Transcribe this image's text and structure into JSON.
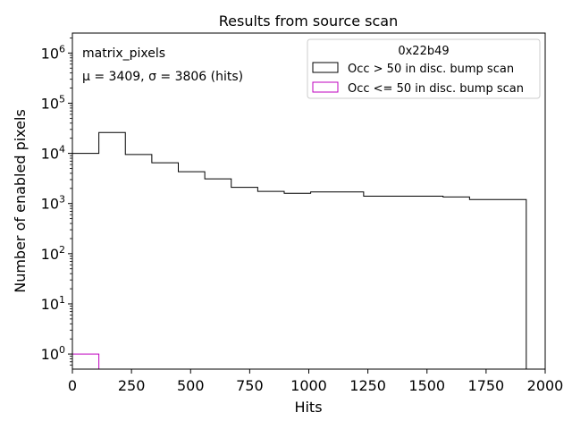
{
  "chart_data": {
    "type": "histogram",
    "title": "Results from source scan",
    "xlabel": "Hits",
    "ylabel": "Number of enabled pixels",
    "yscale": "log",
    "xlim": [
      0,
      2000
    ],
    "ylim": [
      0.5,
      2500000
    ],
    "xticks": [
      0,
      250,
      500,
      750,
      1000,
      1250,
      1500,
      1750,
      2000
    ],
    "xtick_labels": [
      "0",
      "250",
      "500",
      "750",
      "1000",
      "1250",
      "1500",
      "1750",
      "2000"
    ],
    "ytick_exponents": [
      0,
      1,
      2,
      3,
      4,
      5,
      6
    ],
    "ytick_base": "10",
    "annotations": {
      "name": "matrix_pixels",
      "stats": "μ = 3409, σ = 3806 (hits)"
    },
    "legend": {
      "title": "0x22b49",
      "position": "top-right"
    },
    "series": [
      {
        "name": "Occ > 50 in disc. bump scan",
        "color": "#000000",
        "bin_edges": [
          0,
          112,
          224,
          336,
          448,
          560,
          672,
          784,
          896,
          1008,
          1120,
          1232,
          1344,
          1456,
          1568,
          1680,
          1792,
          1920
        ],
        "values": [
          10000,
          26000,
          9500,
          6500,
          4300,
          3100,
          2100,
          1750,
          1600,
          1700,
          1700,
          1400,
          1400,
          1400,
          1350,
          1200,
          1200
        ]
      },
      {
        "name": "Occ <= 50 in disc. bump scan",
        "color": "#bf00bf",
        "bin_edges": [
          0,
          112
        ],
        "values": [
          1
        ]
      }
    ]
  }
}
